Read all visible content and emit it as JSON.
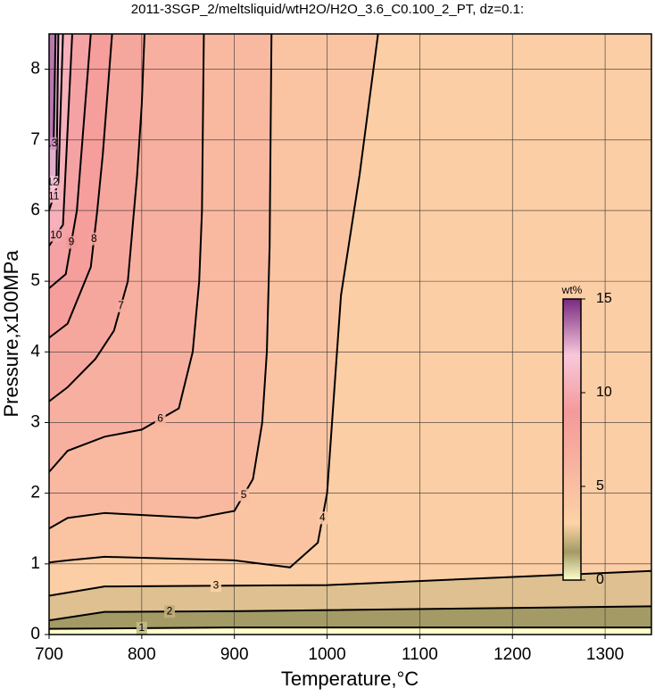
{
  "chart_data": {
    "type": "contour",
    "title": "2011-3SGP_2/meltsliquid/wtH2O/H2O_3.6_C0.100_2_PT, dz=0.1:",
    "x_label": "Temperature,°C",
    "y_label": "Pressure,x100MPa",
    "xlim": [
      700,
      1350
    ],
    "ylim": [
      0,
      8.5
    ],
    "xticks": [
      700,
      800,
      900,
      1000,
      1100,
      1200,
      1300
    ],
    "yticks": [
      0,
      1,
      2,
      3,
      4,
      5,
      6,
      7,
      8
    ],
    "grid": true,
    "colormap": [
      [
        0,
        "#ffffcc"
      ],
      [
        1.5,
        "#a39a66"
      ],
      [
        3,
        "#fcd3a6"
      ],
      [
        6,
        "#f8b4a0"
      ],
      [
        9,
        "#f49a9a"
      ],
      [
        12,
        "#f8c8dc"
      ],
      [
        15,
        "#7a2a80"
      ]
    ],
    "colorbar": {
      "label": "wt%",
      "lim": [
        0,
        15
      ],
      "ticks": [
        0,
        5,
        10,
        15
      ]
    },
    "contours": [
      {
        "level": 1,
        "x": [
          700,
          900,
          1350
        ],
        "y": [
          0.08,
          0.1,
          0.1
        ]
      },
      {
        "level": 2,
        "x": [
          700,
          760,
          900,
          1350
        ],
        "y": [
          0.2,
          0.32,
          0.33,
          0.4
        ]
      },
      {
        "level": 3,
        "x": [
          700,
          760,
          1000,
          1350
        ],
        "y": [
          0.55,
          0.68,
          0.7,
          0.9
        ]
      },
      {
        "level": 4,
        "x": [
          700,
          720,
          760,
          900,
          960,
          990,
          1000,
          1008,
          1015,
          1035,
          1055
        ],
        "y": [
          1.02,
          1.05,
          1.1,
          1.05,
          0.95,
          1.3,
          2.0,
          3.5,
          4.8,
          6.5,
          8.5
        ]
      },
      {
        "level": 5,
        "x": [
          700,
          720,
          760,
          860,
          900,
          920,
          930,
          935,
          938,
          940
        ],
        "y": [
          1.5,
          1.65,
          1.72,
          1.65,
          1.75,
          2.2,
          3.0,
          4.0,
          5.5,
          8.5
        ]
      },
      {
        "level": 6,
        "x": [
          700,
          720,
          760,
          800,
          840,
          855,
          862,
          865,
          867
        ],
        "y": [
          2.3,
          2.6,
          2.8,
          2.9,
          3.2,
          4.0,
          5.0,
          6.0,
          8.5
        ]
      },
      {
        "level": 7,
        "x": [
          700,
          720,
          750,
          770,
          785,
          795,
          800,
          803
        ],
        "y": [
          3.3,
          3.5,
          3.9,
          4.3,
          5.0,
          6.5,
          7.5,
          8.5
        ]
      },
      {
        "level": 8,
        "x": [
          700,
          720,
          745,
          752,
          758,
          768
        ],
        "y": [
          4.2,
          4.4,
          5.2,
          6.0,
          6.8,
          8.5
        ]
      },
      {
        "level": 9,
        "x": [
          700,
          718,
          730,
          745
        ],
        "y": [
          4.9,
          5.1,
          6.0,
          8.5
        ]
      },
      {
        "level": 10,
        "x": [
          700,
          715,
          725
        ],
        "y": [
          5.5,
          5.8,
          8.5
        ]
      },
      {
        "level": 11,
        "x": [
          700,
          710,
          715
        ],
        "y": [
          6.0,
          6.4,
          8.5
        ]
      },
      {
        "level": 12,
        "x": [
          700,
          708,
          710
        ],
        "y": [
          6.3,
          6.5,
          8.5
        ]
      },
      {
        "level": 13,
        "x": [
          700,
          705,
          707
        ],
        "y": [
          6.9,
          7.0,
          8.5
        ]
      }
    ]
  }
}
